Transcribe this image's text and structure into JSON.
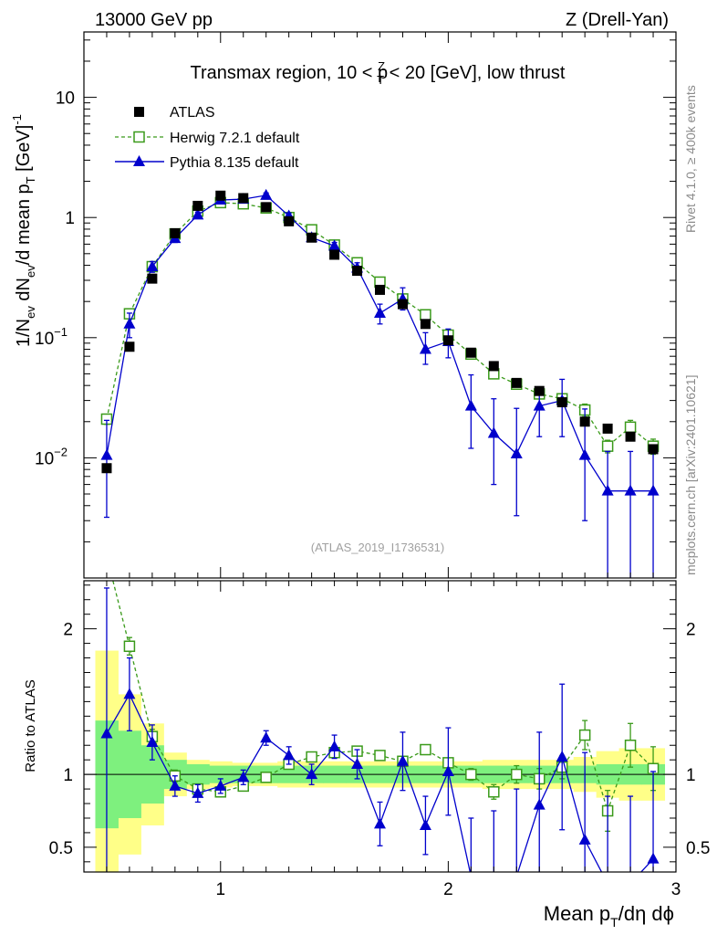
{
  "header": {
    "left": "13000 GeV pp",
    "right": "Z (Drell-Yan)"
  },
  "side_labels": {
    "rivet": "Rivet 4.1.0, ≥ 400k events",
    "mcplots": "mcplots.cern.ch [arXiv:2401.10621]"
  },
  "watermark": "(ATLAS_2019_I1736531)",
  "colors": {
    "atlas": "#000000",
    "herwig": "#3a9a1a",
    "pythia": "#0000cc",
    "band_inner": "#7ef07e",
    "band_outer": "#ffff88"
  },
  "chart_data": [
    {
      "type": "line",
      "yscale": "log",
      "title": "Transmax region, 10 < p_T^Z < 20 [GeV], low thrust",
      "title_parts": [
        "Transmax region, 10 < p",
        "Z",
        "T",
        " < 20 [GeV], low thrust"
      ],
      "ylabel": "1/N_ev dN_ev/d mean p_T [GeV]^-1",
      "xlabel": "",
      "xlim": [
        0.4,
        3.0
      ],
      "ylim": [
        0.001,
        35
      ],
      "x_ticks": [
        1,
        2,
        3
      ],
      "y_ticks": [
        {
          "value": 0.01,
          "base": "10",
          "exp": "−2"
        },
        {
          "value": 0.1,
          "base": "10",
          "exp": "−1"
        },
        {
          "value": 1,
          "base": "1",
          "exp": ""
        },
        {
          "value": 10,
          "base": "10",
          "exp": ""
        }
      ],
      "legend": [
        "ATLAS",
        "Herwig 7.2.1 default",
        "Pythia 8.135 default"
      ],
      "x": [
        0.5,
        0.6,
        0.7,
        0.8,
        0.9,
        1.0,
        1.1,
        1.2,
        1.3,
        1.4,
        1.5,
        1.6,
        1.7,
        1.8,
        1.9,
        2.0,
        2.1,
        2.2,
        2.3,
        2.4,
        2.5,
        2.6,
        2.7,
        2.8,
        2.9
      ],
      "series": [
        {
          "name": "ATLAS",
          "style": "square-filled",
          "values": [
            0.0082,
            0.084,
            0.31,
            0.74,
            1.25,
            1.52,
            1.45,
            1.22,
            0.93,
            0.68,
            0.49,
            0.36,
            0.25,
            0.19,
            0.13,
            0.095,
            0.075,
            0.058,
            0.042,
            0.036,
            0.029,
            0.02,
            0.0175,
            0.015,
            0.0118
          ]
        },
        {
          "name": "Herwig 7.2.1 default",
          "style": "square-open-dashed",
          "values": [
            0.021,
            0.158,
            0.39,
            0.73,
            1.13,
            1.33,
            1.3,
            1.2,
            1.0,
            0.79,
            0.59,
            0.42,
            0.29,
            0.21,
            0.155,
            0.105,
            0.073,
            0.05,
            0.041,
            0.034,
            0.031,
            0.025,
            0.0125,
            0.018,
            0.0125
          ],
          "errors": [
            0.002,
            0.01,
            0.02,
            0.03,
            0.04,
            0.04,
            0.04,
            0.04,
            0.03,
            0.03,
            0.02,
            0.02,
            0.015,
            0.012,
            0.01,
            0.008,
            0.006,
            0.004,
            0.003,
            0.003,
            0.003,
            0.003,
            0.0015,
            0.0025,
            0.0018
          ]
        },
        {
          "name": "Pythia 8.135 default",
          "style": "triangle-solid",
          "values": [
            0.0105,
            0.13,
            0.39,
            0.67,
            1.05,
            1.4,
            1.42,
            1.53,
            1.03,
            0.68,
            0.58,
            0.38,
            0.16,
            0.21,
            0.08,
            0.093,
            0.027,
            0.016,
            0.0108,
            0.027,
            0.03,
            0.0105,
            0.0053,
            0.0053,
            0.0053
          ],
          "err_lo": [
            0.0073,
            0.03,
            0.04,
            0.05,
            0.06,
            0.07,
            0.07,
            0.07,
            0.06,
            0.05,
            0.04,
            0.04,
            0.03,
            0.04,
            0.02,
            0.025,
            0.015,
            0.01,
            0.0075,
            0.012,
            0.015,
            0.0075,
            0.0053,
            0.0053,
            0.0053
          ],
          "err_hi": [
            0.01,
            0.03,
            0.04,
            0.05,
            0.06,
            0.07,
            0.07,
            0.07,
            0.06,
            0.05,
            0.04,
            0.04,
            0.03,
            0.05,
            0.03,
            0.025,
            0.022,
            0.015,
            0.015,
            0.012,
            0.015,
            0.015,
            0.006,
            0.006,
            0.006
          ]
        }
      ]
    },
    {
      "type": "line",
      "yscale": "linear",
      "title": "",
      "ylabel": "Ratio to ATLAS",
      "xlabel": "Mean p_T/dη dϕ",
      "xlabel_parts": [
        "Mean p",
        "T",
        "/dη dϕ"
      ],
      "xlim": [
        0.4,
        3.0
      ],
      "ylim": [
        0.33,
        2.33
      ],
      "x_ticks": [
        1,
        2,
        3
      ],
      "y_ticks": [
        0.5,
        1,
        2
      ],
      "x": [
        0.5,
        0.6,
        0.7,
        0.8,
        0.9,
        1.0,
        1.1,
        1.2,
        1.3,
        1.4,
        1.5,
        1.6,
        1.7,
        1.8,
        1.9,
        2.0,
        2.1,
        2.2,
        2.3,
        2.4,
        2.5,
        2.6,
        2.7,
        2.8,
        2.9
      ],
      "band_inner": [
        0.37,
        0.3,
        0.2,
        0.1,
        0.07,
        0.06,
        0.06,
        0.06,
        0.06,
        0.06,
        0.06,
        0.06,
        0.06,
        0.06,
        0.06,
        0.06,
        0.06,
        0.06,
        0.06,
        0.06,
        0.06,
        0.06,
        0.07,
        0.07,
        0.07
      ],
      "band_outer": [
        0.85,
        0.55,
        0.35,
        0.15,
        0.1,
        0.09,
        0.08,
        0.08,
        0.09,
        0.09,
        0.09,
        0.09,
        0.09,
        0.09,
        0.09,
        0.09,
        0.09,
        0.1,
        0.1,
        0.1,
        0.1,
        0.12,
        0.16,
        0.18,
        0.18
      ],
      "series": [
        {
          "name": "Herwig 7.2.1 default",
          "style": "square-open-dashed",
          "values": [
            2.5,
            1.88,
            1.26,
            0.99,
            0.9,
            0.88,
            0.92,
            0.98,
            1.07,
            1.12,
            1.15,
            1.16,
            1.13,
            1.09,
            1.17,
            1.08,
            1.0,
            0.88,
            1.0,
            0.97,
            1.05,
            1.27,
            0.75,
            1.2,
            1.04
          ],
          "errors": [
            0.1,
            0.06,
            0.05,
            0.04,
            0.03,
            0.03,
            0.03,
            0.03,
            0.03,
            0.03,
            0.03,
            0.03,
            0.03,
            0.03,
            0.03,
            0.03,
            0.04,
            0.05,
            0.06,
            0.07,
            0.08,
            0.1,
            0.14,
            0.15,
            0.15
          ]
        },
        {
          "name": "Pythia 8.135 default",
          "style": "triangle-solid",
          "values": [
            1.28,
            1.55,
            1.22,
            0.92,
            0.87,
            0.92,
            0.98,
            1.25,
            1.13,
            1.0,
            1.19,
            1.07,
            0.66,
            1.09,
            0.65,
            1.02,
            0.3,
            0.25,
            0.3,
            0.79,
            1.12,
            0.55,
            0.25,
            0.25,
            0.42
          ],
          "errors": [
            1.0,
            0.25,
            0.12,
            0.07,
            0.06,
            0.05,
            0.05,
            0.05,
            0.06,
            0.07,
            0.08,
            0.1,
            0.15,
            0.2,
            0.2,
            0.3,
            0.4,
            0.5,
            0.6,
            0.5,
            0.5,
            0.6,
            0.6,
            0.6,
            0.6
          ]
        }
      ]
    }
  ]
}
